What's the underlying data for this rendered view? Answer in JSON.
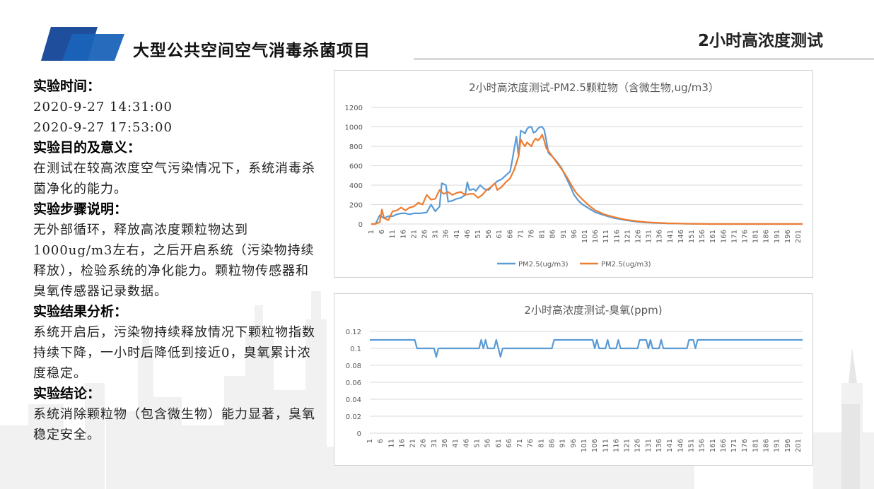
{
  "header": {
    "title": "大型公共空间空气消毒杀菌项目",
    "subtitle": "2小时高浓度测试"
  },
  "left_panel": {
    "time_heading": "实验时间：",
    "time_start": "2020-9-27 14:31:00",
    "time_end": "2020-9-27 17:53:00",
    "purpose_heading": "实验目的及意义：",
    "purpose_text": "在测试在较高浓度空气污染情况下，系统消毒杀菌净化的能力。",
    "steps_heading": "实验步骤说明：",
    "steps_text": "无外部循环，释放高浓度颗粒物达到1000ug/m3左右，之后开启系统（污染物持续释放），检验系统的净化能力。颗粒物传感器和臭氧传感器记录数据。",
    "result_heading": "实验结果分析：",
    "result_text": "系统开启后，污染物持续释放情况下颗粒物指数持续下降，一小时后降低到接近0，臭氧累计浓度稳定。",
    "conclusion_heading": "实验结论：",
    "conclusion_text": "系统消除颗粒物（包含微生物）能力显著，臭氧稳定安全。"
  },
  "colors": {
    "series_blue": "#5b9bd5",
    "series_orange": "#ed7d31",
    "brand_blue": "#1f4e9c"
  },
  "chart_data": [
    {
      "type": "line",
      "title": "2小时高浓度测试-PM2.5颗粒物（含微生物,ug/m3）",
      "x_range": [
        1,
        203
      ],
      "x_tick_labels": [
        "1",
        "6",
        "11",
        "16",
        "21",
        "26",
        "31",
        "36",
        "41",
        "46",
        "51",
        "56",
        "61",
        "66",
        "71",
        "76",
        "81",
        "86",
        "91",
        "96",
        "101",
        "106",
        "111",
        "116",
        "121",
        "126",
        "131",
        "136",
        "141",
        "146",
        "151",
        "156",
        "161",
        "166",
        "171",
        "176",
        "181",
        "186",
        "191",
        "196",
        "201"
      ],
      "ylim": [
        0,
        1200
      ],
      "y_ticks": [
        0,
        200,
        400,
        600,
        800,
        1000,
        1200
      ],
      "grid": true,
      "legend": "bottom",
      "series": [
        {
          "name": "PM2.5(ug/m3)",
          "color": "#5b9bd5",
          "points": [
            [
              1,
              0
            ],
            [
              3,
              0
            ],
            [
              5,
              90
            ],
            [
              7,
              60
            ],
            [
              9,
              80
            ],
            [
              11,
              80
            ],
            [
              13,
              100
            ],
            [
              15,
              110
            ],
            [
              17,
              110
            ],
            [
              19,
              100
            ],
            [
              21,
              110
            ],
            [
              24,
              110
            ],
            [
              27,
              120
            ],
            [
              29,
              200
            ],
            [
              31,
              130
            ],
            [
              33,
              180
            ],
            [
              34,
              420
            ],
            [
              36,
              400
            ],
            [
              37,
              230
            ],
            [
              39,
              240
            ],
            [
              41,
              260
            ],
            [
              43,
              270
            ],
            [
              45,
              300
            ],
            [
              46,
              430
            ],
            [
              47,
              350
            ],
            [
              49,
              360
            ],
            [
              50,
              340
            ],
            [
              52,
              400
            ],
            [
              54,
              360
            ],
            [
              56,
              350
            ],
            [
              58,
              400
            ],
            [
              60,
              440
            ],
            [
              62,
              460
            ],
            [
              64,
              500
            ],
            [
              66,
              540
            ],
            [
              67,
              650
            ],
            [
              68,
              780
            ],
            [
              69,
              900
            ],
            [
              70,
              700
            ],
            [
              71,
              960
            ],
            [
              72,
              950
            ],
            [
              73,
              930
            ],
            [
              74,
              980
            ],
            [
              75,
              1000
            ],
            [
              76,
              1000
            ],
            [
              77,
              940
            ],
            [
              78,
              950
            ],
            [
              79,
              980
            ],
            [
              80,
              1000
            ],
            [
              81,
              1000
            ],
            [
              82,
              970
            ],
            [
              83,
              860
            ],
            [
              84,
              730
            ],
            [
              86,
              690
            ],
            [
              88,
              640
            ],
            [
              90,
              580
            ],
            [
              92,
              490
            ],
            [
              94,
              400
            ],
            [
              96,
              300
            ],
            [
              98,
              240
            ],
            [
              100,
              200
            ],
            [
              103,
              160
            ],
            [
              106,
              120
            ],
            [
              110,
              90
            ],
            [
              115,
              60
            ],
            [
              120,
              40
            ],
            [
              125,
              25
            ],
            [
              130,
              15
            ],
            [
              140,
              6
            ],
            [
              150,
              2
            ],
            [
              160,
              0
            ],
            [
              203,
              0
            ]
          ]
        },
        {
          "name": "PM2.5(ug/m3)",
          "color": "#ed7d31",
          "points": [
            [
              1,
              0
            ],
            [
              3,
              0
            ],
            [
              5,
              20
            ],
            [
              6,
              150
            ],
            [
              7,
              60
            ],
            [
              9,
              40
            ],
            [
              11,
              130
            ],
            [
              13,
              140
            ],
            [
              15,
              170
            ],
            [
              17,
              140
            ],
            [
              19,
              170
            ],
            [
              21,
              180
            ],
            [
              23,
              220
            ],
            [
              25,
              200
            ],
            [
              27,
              300
            ],
            [
              29,
              250
            ],
            [
              31,
              260
            ],
            [
              33,
              350
            ],
            [
              35,
              310
            ],
            [
              37,
              330
            ],
            [
              39,
              300
            ],
            [
              41,
              320
            ],
            [
              43,
              330
            ],
            [
              45,
              300
            ],
            [
              47,
              310
            ],
            [
              49,
              310
            ],
            [
              51,
              270
            ],
            [
              53,
              300
            ],
            [
              55,
              350
            ],
            [
              57,
              380
            ],
            [
              59,
              420
            ],
            [
              60,
              350
            ],
            [
              62,
              380
            ],
            [
              64,
              430
            ],
            [
              66,
              470
            ],
            [
              68,
              560
            ],
            [
              70,
              700
            ],
            [
              71,
              870
            ],
            [
              72,
              830
            ],
            [
              73,
              800
            ],
            [
              74,
              840
            ],
            [
              75,
              820
            ],
            [
              76,
              800
            ],
            [
              77,
              850
            ],
            [
              78,
              880
            ],
            [
              79,
              860
            ],
            [
              80,
              880
            ],
            [
              81,
              920
            ],
            [
              82,
              860
            ],
            [
              83,
              780
            ],
            [
              85,
              720
            ],
            [
              87,
              660
            ],
            [
              89,
              600
            ],
            [
              91,
              540
            ],
            [
              93,
              470
            ],
            [
              95,
              390
            ],
            [
              97,
              320
            ],
            [
              100,
              250
            ],
            [
              103,
              190
            ],
            [
              106,
              140
            ],
            [
              110,
              100
            ],
            [
              115,
              70
            ],
            [
              120,
              45
            ],
            [
              125,
              30
            ],
            [
              130,
              18
            ],
            [
              140,
              7
            ],
            [
              150,
              2
            ],
            [
              160,
              0
            ],
            [
              203,
              0
            ]
          ]
        }
      ]
    },
    {
      "type": "line",
      "title": "2小时高浓度测试-臭氧(ppm)",
      "x_range": [
        1,
        203
      ],
      "x_tick_labels": [
        "1",
        "6",
        "11",
        "16",
        "21",
        "26",
        "31",
        "36",
        "41",
        "46",
        "51",
        "56",
        "61",
        "66",
        "71",
        "76",
        "81",
        "86",
        "91",
        "96",
        "101",
        "106",
        "111",
        "116",
        "121",
        "126",
        "131",
        "136",
        "141",
        "146",
        "151",
        "156",
        "161",
        "166",
        "171",
        "176",
        "181",
        "186",
        "191",
        "196",
        "201"
      ],
      "ylim": [
        0,
        0.12
      ],
      "y_ticks": [
        "0",
        "0.02",
        "0.04",
        "0.06",
        "0.08",
        "0.1",
        "0.12"
      ],
      "grid": true,
      "series": [
        {
          "color": "#5b9bd5",
          "points": [
            [
              1,
              0.11
            ],
            [
              22,
              0.11
            ],
            [
              23,
              0.1
            ],
            [
              31,
              0.1
            ],
            [
              32,
              0.09
            ],
            [
              33,
              0.1
            ],
            [
              52,
              0.1
            ],
            [
              53,
              0.11
            ],
            [
              54,
              0.1
            ],
            [
              55,
              0.11
            ],
            [
              56,
              0.1
            ],
            [
              59,
              0.1
            ],
            [
              60,
              0.11
            ],
            [
              61,
              0.1
            ],
            [
              62,
              0.09
            ],
            [
              63,
              0.1
            ],
            [
              86,
              0.1
            ],
            [
              87,
              0.11
            ],
            [
              105,
              0.11
            ],
            [
              106,
              0.1
            ],
            [
              107,
              0.11
            ],
            [
              108,
              0.1
            ],
            [
              111,
              0.1
            ],
            [
              112,
              0.11
            ],
            [
              113,
              0.1
            ],
            [
              116,
              0.1
            ],
            [
              117,
              0.11
            ],
            [
              118,
              0.1
            ],
            [
              126,
              0.1
            ],
            [
              127,
              0.11
            ],
            [
              130,
              0.11
            ],
            [
              131,
              0.1
            ],
            [
              132,
              0.11
            ],
            [
              133,
              0.1
            ],
            [
              136,
              0.1
            ],
            [
              137,
              0.11
            ],
            [
              138,
              0.1
            ],
            [
              149,
              0.1
            ],
            [
              150,
              0.11
            ],
            [
              152,
              0.11
            ],
            [
              153,
              0.1
            ],
            [
              154,
              0.11
            ],
            [
              203,
              0.11
            ]
          ]
        }
      ]
    }
  ]
}
